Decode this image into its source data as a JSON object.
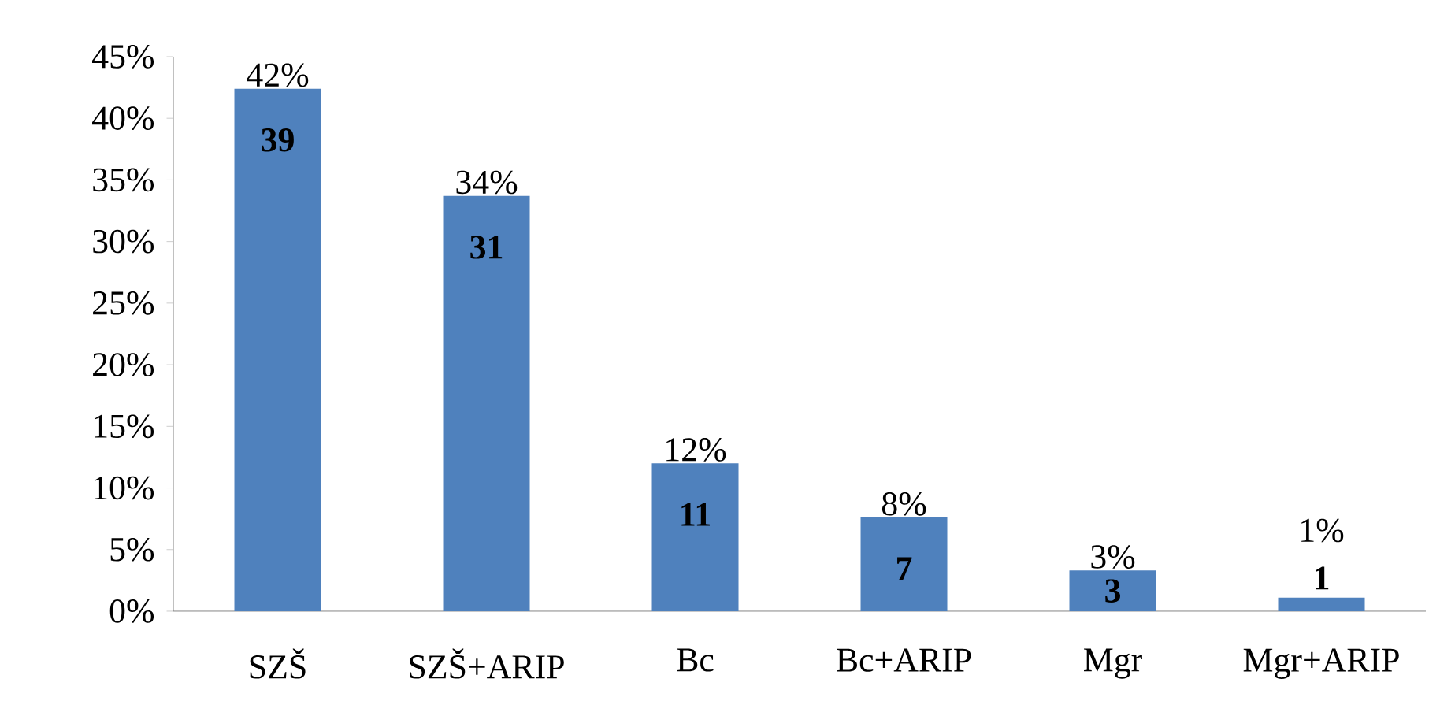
{
  "chart_data": {
    "type": "bar",
    "categories": [
      "SZŠ",
      "SZŠ+ARIP",
      "Bc",
      "Bc+ARIP",
      "Mgr",
      "Mgr+ARIP"
    ],
    "values": [
      42.4,
      33.7,
      12.0,
      7.6,
      3.3,
      1.1
    ],
    "value_labels": [
      "42%",
      "34%",
      "12%",
      "8%",
      "3%",
      "1%"
    ],
    "color": "#4f81bd",
    "ylim": [
      0,
      45
    ],
    "yticks": [
      {
        "value": 0,
        "label": "0%"
      },
      {
        "value": 5,
        "label": "5%"
      },
      {
        "value": 10,
        "label": "10%"
      },
      {
        "value": 15,
        "label": "15%"
      },
      {
        "value": 20,
        "label": "20%"
      },
      {
        "value": 25,
        "label": "25%"
      },
      {
        "value": 30,
        "label": "30%"
      },
      {
        "value": 35,
        "label": "35%"
      },
      {
        "value": 40,
        "label": "40%"
      },
      {
        "value": 45,
        "label": "45%"
      }
    ],
    "annotations": [
      "**39**",
      "**31**",
      "**11**",
      "**7**",
      "**3**",
      "**1**"
    ],
    "grid": false
  }
}
